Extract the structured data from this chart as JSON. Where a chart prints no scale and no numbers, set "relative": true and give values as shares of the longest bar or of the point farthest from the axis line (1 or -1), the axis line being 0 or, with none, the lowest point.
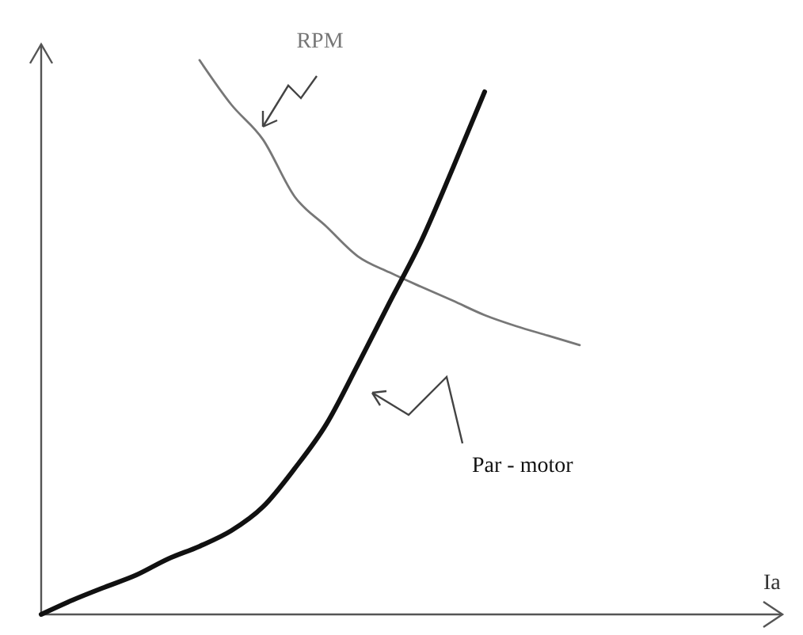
{
  "chart_data": {
    "type": "line",
    "relative": true,
    "xlabel": "Ia",
    "marker": "none",
    "line_style": "solid",
    "categories": [
      null,
      null,
      null,
      null,
      null,
      null,
      null,
      null,
      null,
      null,
      null,
      null,
      null,
      null,
      null,
      null,
      null,
      null,
      null,
      null,
      null,
      null,
      null,
      null
    ],
    "series": [
      {
        "name": "RPM",
        "color": "#777777",
        "values": [
          null,
          null,
          null,
          null,
          null,
          1,
          0.92,
          0.857,
          0.754,
          0.7,
          0.646,
          0.617,
          0.591,
          0.566,
          0.54,
          0.52,
          0.503,
          0.486,
          null,
          null,
          null,
          null,
          null,
          null
        ]
      },
      {
        "name": "Par - motor",
        "color": "#111111",
        "values": [
          0,
          0.026,
          0.049,
          0.071,
          0.1,
          0.123,
          0.151,
          0.194,
          0.263,
          0.343,
          0.451,
          0.563,
          0.674,
          0.806,
          0.943,
          null,
          null,
          null,
          null,
          null,
          null,
          null,
          null,
          null
        ]
      }
    ]
  }
}
